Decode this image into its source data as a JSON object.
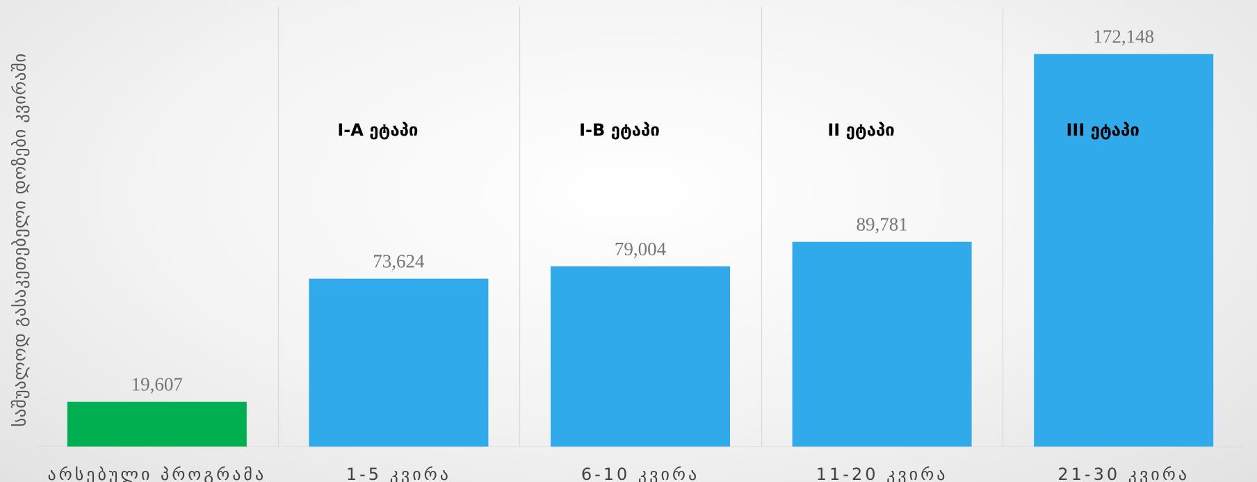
{
  "chart_data": {
    "type": "bar",
    "title": "",
    "xlabel": "",
    "ylabel": "საშუალოდ გასაკეთებელი დოზები კვირაში",
    "categories": [
      "არსებული პროგრამა",
      "1-5 კვირა",
      "6-10 კვირა",
      "11-20 კვირა",
      "21-30 კვირა"
    ],
    "values": [
      19607,
      73624,
      79004,
      89781,
      172148
    ],
    "value_labels": [
      "19,607",
      "73,624",
      "79,004",
      "89,781",
      "172,148"
    ],
    "stage_labels": [
      "",
      "I-A ეტაპი",
      "I-B ეტაპი",
      "II ეტაპი",
      "III ეტაპი"
    ],
    "ylim": [
      0,
      200000
    ],
    "grid": false,
    "colors": [
      "#00B050",
      "#30AAEA",
      "#30AAEA",
      "#30AAEA",
      "#30AAEA"
    ],
    "separator_color": "#d9d9d9"
  }
}
